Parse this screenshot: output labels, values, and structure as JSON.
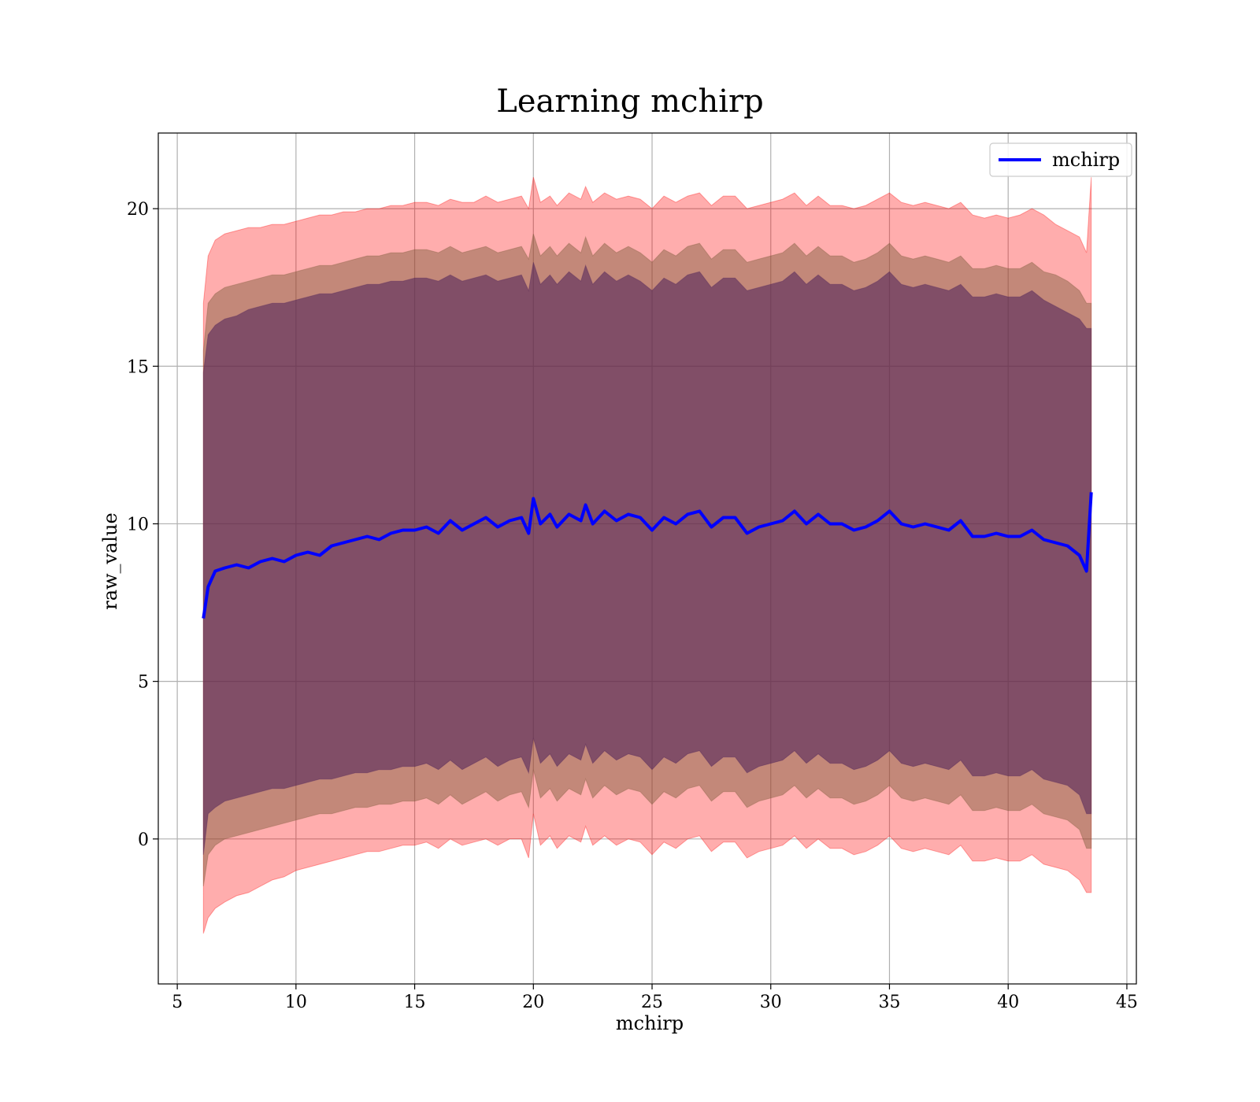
{
  "chart_data": {
    "type": "line",
    "title": "Learning mchirp",
    "xlabel": "mchirp",
    "ylabel": "raw_value",
    "xlim": [
      4.2,
      45.4
    ],
    "ylim": [
      -4.6,
      22.4
    ],
    "xticks": [
      5,
      10,
      15,
      20,
      25,
      30,
      35,
      40,
      45
    ],
    "yticks": [
      0,
      5,
      10,
      15,
      20
    ],
    "grid": true,
    "legend_position": "top-right",
    "colors": {
      "line": "#0000ff",
      "outer_band": "#ff0000",
      "inner_band": "#ff0000",
      "mid_band": "#7a5a3a",
      "core_band": "#4a1f5a"
    },
    "x": [
      6.1,
      6.3,
      6.6,
      7.0,
      7.5,
      8.0,
      8.5,
      9.0,
      9.5,
      10.0,
      10.5,
      11.0,
      11.5,
      12.0,
      12.5,
      13.0,
      13.5,
      14.0,
      14.5,
      15.0,
      15.5,
      16.0,
      16.5,
      17.0,
      17.5,
      18.0,
      18.5,
      19.0,
      19.5,
      19.8,
      20.0,
      20.3,
      20.7,
      21.0,
      21.5,
      22.0,
      22.2,
      22.5,
      23.0,
      23.5,
      24.0,
      24.5,
      25.0,
      25.5,
      26.0,
      26.5,
      27.0,
      27.5,
      28.0,
      28.5,
      29.0,
      29.5,
      30.0,
      30.5,
      31.0,
      31.5,
      32.0,
      32.5,
      33.0,
      33.5,
      34.0,
      34.5,
      35.0,
      35.5,
      36.0,
      36.5,
      37.0,
      37.5,
      38.0,
      38.5,
      39.0,
      39.5,
      40.0,
      40.5,
      41.0,
      41.5,
      42.0,
      42.5,
      43.0,
      43.3,
      43.5
    ],
    "series": [
      {
        "name": "mchirp",
        "values": [
          7.0,
          8.0,
          8.5,
          8.6,
          8.7,
          8.6,
          8.8,
          8.9,
          8.8,
          9.0,
          9.1,
          9.0,
          9.3,
          9.4,
          9.5,
          9.6,
          9.5,
          9.7,
          9.8,
          9.8,
          9.9,
          9.7,
          10.1,
          9.8,
          10.0,
          10.2,
          9.9,
          10.1,
          10.2,
          9.7,
          10.8,
          10.0,
          10.3,
          9.9,
          10.3,
          10.1,
          10.6,
          10.0,
          10.4,
          10.1,
          10.3,
          10.2,
          9.8,
          10.2,
          10.0,
          10.3,
          10.4,
          9.9,
          10.2,
          10.2,
          9.7,
          9.9,
          10.0,
          10.1,
          10.4,
          10.0,
          10.3,
          10.0,
          10.0,
          9.8,
          9.9,
          10.1,
          10.4,
          10.0,
          9.9,
          10.0,
          9.9,
          9.8,
          10.1,
          9.6,
          9.6,
          9.7,
          9.6,
          9.6,
          9.8,
          9.5,
          9.4,
          9.3,
          9.0,
          8.5,
          11.0
        ]
      }
    ],
    "bands": [
      {
        "role": "outer",
        "upper": [
          17.0,
          18.5,
          19.0,
          19.2,
          19.3,
          19.4,
          19.4,
          19.5,
          19.5,
          19.6,
          19.7,
          19.8,
          19.8,
          19.9,
          19.9,
          20.0,
          20.0,
          20.1,
          20.1,
          20.2,
          20.2,
          20.1,
          20.3,
          20.2,
          20.2,
          20.4,
          20.2,
          20.3,
          20.4,
          20.0,
          21.0,
          20.2,
          20.4,
          20.1,
          20.5,
          20.3,
          20.7,
          20.2,
          20.5,
          20.3,
          20.4,
          20.3,
          20.0,
          20.4,
          20.2,
          20.4,
          20.5,
          20.1,
          20.4,
          20.4,
          20.0,
          20.1,
          20.2,
          20.3,
          20.5,
          20.1,
          20.4,
          20.1,
          20.1,
          20.0,
          20.1,
          20.3,
          20.5,
          20.2,
          20.1,
          20.2,
          20.1,
          20.0,
          20.2,
          19.8,
          19.7,
          19.8,
          19.7,
          19.8,
          20.0,
          19.8,
          19.5,
          19.3,
          19.1,
          18.6,
          21.0
        ],
        "lower": [
          -3.0,
          -2.5,
          -2.2,
          -2.0,
          -1.8,
          -1.7,
          -1.5,
          -1.3,
          -1.2,
          -1.0,
          -0.9,
          -0.8,
          -0.7,
          -0.6,
          -0.5,
          -0.4,
          -0.4,
          -0.3,
          -0.2,
          -0.2,
          -0.1,
          -0.3,
          0.0,
          -0.2,
          -0.1,
          0.0,
          -0.2,
          0.0,
          0.0,
          -0.6,
          0.8,
          -0.2,
          0.1,
          -0.3,
          0.1,
          -0.1,
          0.4,
          -0.2,
          0.1,
          -0.2,
          0.0,
          -0.1,
          -0.5,
          -0.1,
          -0.3,
          0.0,
          0.1,
          -0.4,
          -0.1,
          -0.1,
          -0.6,
          -0.4,
          -0.3,
          -0.2,
          0.1,
          -0.3,
          0.0,
          -0.3,
          -0.3,
          -0.5,
          -0.4,
          -0.2,
          0.1,
          -0.3,
          -0.4,
          -0.3,
          -0.4,
          -0.5,
          -0.2,
          -0.7,
          -0.7,
          -0.6,
          -0.7,
          -0.7,
          -0.5,
          -0.8,
          -0.9,
          -1.0,
          -1.3,
          -1.7,
          -1.7
        ]
      },
      {
        "role": "middle",
        "upper": [
          15.5,
          17.0,
          17.3,
          17.5,
          17.6,
          17.7,
          17.8,
          17.9,
          17.9,
          18.0,
          18.1,
          18.2,
          18.2,
          18.3,
          18.4,
          18.5,
          18.5,
          18.6,
          18.6,
          18.7,
          18.7,
          18.6,
          18.8,
          18.6,
          18.7,
          18.8,
          18.6,
          18.7,
          18.8,
          18.4,
          19.2,
          18.5,
          18.8,
          18.5,
          18.9,
          18.6,
          19.1,
          18.5,
          18.9,
          18.6,
          18.8,
          18.6,
          18.3,
          18.7,
          18.5,
          18.8,
          18.9,
          18.4,
          18.7,
          18.7,
          18.3,
          18.4,
          18.5,
          18.6,
          18.9,
          18.5,
          18.8,
          18.5,
          18.5,
          18.3,
          18.4,
          18.6,
          18.9,
          18.5,
          18.4,
          18.5,
          18.4,
          18.3,
          18.5,
          18.1,
          18.1,
          18.2,
          18.1,
          18.1,
          18.3,
          18.0,
          17.9,
          17.7,
          17.4,
          17.0,
          17.0
        ],
        "lower": [
          -1.5,
          -0.5,
          -0.2,
          0.0,
          0.1,
          0.2,
          0.3,
          0.4,
          0.5,
          0.6,
          0.7,
          0.8,
          0.8,
          0.9,
          1.0,
          1.0,
          1.1,
          1.1,
          1.2,
          1.2,
          1.3,
          1.1,
          1.4,
          1.1,
          1.3,
          1.5,
          1.2,
          1.4,
          1.5,
          1.0,
          2.2,
          1.3,
          1.6,
          1.2,
          1.6,
          1.4,
          1.9,
          1.3,
          1.7,
          1.4,
          1.6,
          1.5,
          1.1,
          1.5,
          1.3,
          1.6,
          1.7,
          1.2,
          1.5,
          1.5,
          1.0,
          1.2,
          1.3,
          1.4,
          1.7,
          1.3,
          1.6,
          1.3,
          1.3,
          1.1,
          1.2,
          1.4,
          1.7,
          1.3,
          1.2,
          1.3,
          1.2,
          1.1,
          1.4,
          0.9,
          0.9,
          1.0,
          0.9,
          0.9,
          1.1,
          0.8,
          0.7,
          0.6,
          0.3,
          -0.3,
          -0.3
        ]
      },
      {
        "role": "inner",
        "upper": [
          14.8,
          16.0,
          16.3,
          16.5,
          16.6,
          16.8,
          16.9,
          17.0,
          17.0,
          17.1,
          17.2,
          17.3,
          17.3,
          17.4,
          17.5,
          17.6,
          17.6,
          17.7,
          17.7,
          17.8,
          17.8,
          17.7,
          17.9,
          17.7,
          17.8,
          17.9,
          17.7,
          17.8,
          17.9,
          17.4,
          18.3,
          17.6,
          17.9,
          17.6,
          18.0,
          17.7,
          18.2,
          17.6,
          18.0,
          17.7,
          17.9,
          17.7,
          17.4,
          17.8,
          17.6,
          17.9,
          18.0,
          17.5,
          17.8,
          17.8,
          17.4,
          17.5,
          17.6,
          17.7,
          18.0,
          17.6,
          17.9,
          17.6,
          17.6,
          17.4,
          17.5,
          17.7,
          18.0,
          17.6,
          17.5,
          17.6,
          17.5,
          17.4,
          17.6,
          17.2,
          17.2,
          17.3,
          17.2,
          17.2,
          17.4,
          17.1,
          16.9,
          16.7,
          16.5,
          16.2,
          16.2
        ],
        "lower": [
          -0.5,
          0.8,
          1.0,
          1.2,
          1.3,
          1.4,
          1.5,
          1.6,
          1.6,
          1.7,
          1.8,
          1.9,
          1.9,
          2.0,
          2.1,
          2.1,
          2.2,
          2.2,
          2.3,
          2.3,
          2.4,
          2.2,
          2.5,
          2.2,
          2.4,
          2.6,
          2.3,
          2.5,
          2.6,
          2.1,
          3.2,
          2.4,
          2.7,
          2.3,
          2.7,
          2.5,
          3.0,
          2.4,
          2.8,
          2.5,
          2.7,
          2.6,
          2.2,
          2.6,
          2.4,
          2.7,
          2.8,
          2.3,
          2.6,
          2.6,
          2.1,
          2.3,
          2.4,
          2.5,
          2.8,
          2.4,
          2.7,
          2.4,
          2.4,
          2.2,
          2.3,
          2.5,
          2.8,
          2.4,
          2.3,
          2.4,
          2.3,
          2.2,
          2.5,
          2.0,
          2.0,
          2.1,
          2.0,
          2.0,
          2.2,
          1.9,
          1.8,
          1.7,
          1.4,
          0.8,
          0.8
        ]
      }
    ]
  }
}
